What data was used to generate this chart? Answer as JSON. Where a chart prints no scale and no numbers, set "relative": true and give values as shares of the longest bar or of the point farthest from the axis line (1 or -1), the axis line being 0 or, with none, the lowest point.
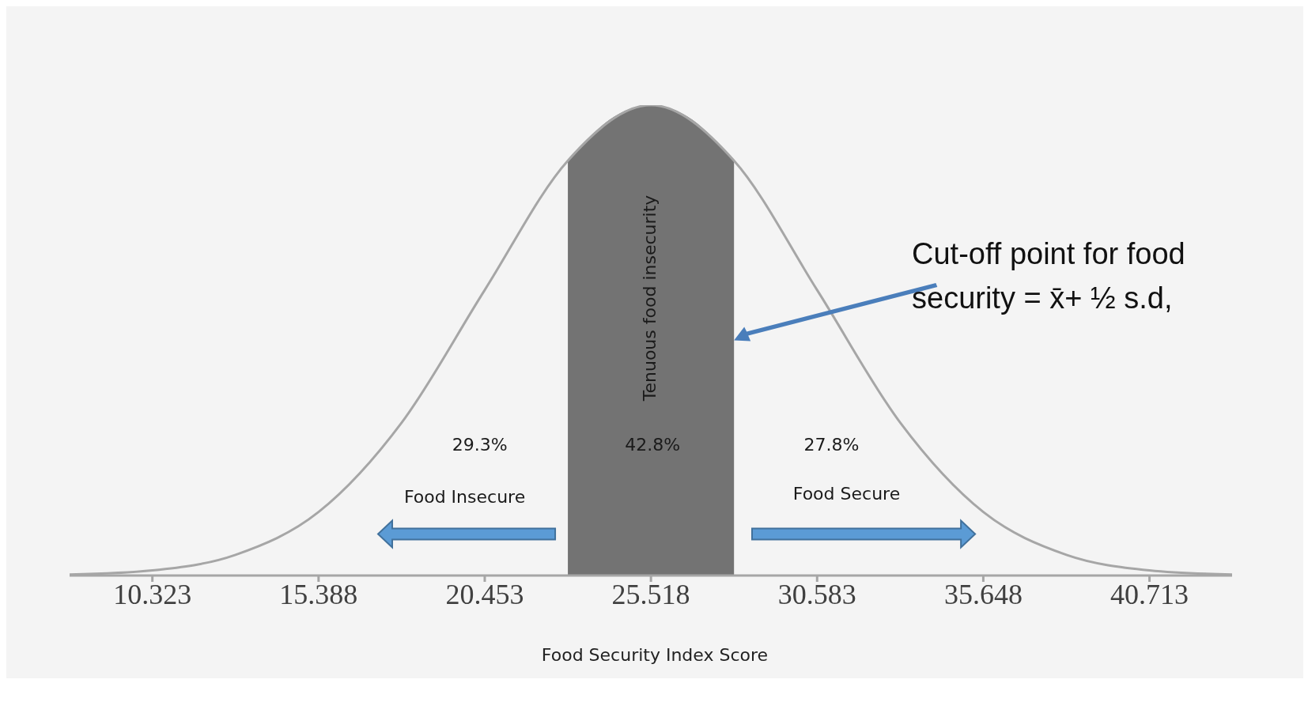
{
  "chart_data": {
    "type": "line",
    "relative": true,
    "xlabel": "Food Security Index Score",
    "xlim": [
      7.8,
      43.23
    ],
    "xticks": [
      10.323,
      15.388,
      20.453,
      25.518,
      30.583,
      35.648,
      40.713
    ],
    "marker": "none",
    "series": [
      {
        "type": "area",
        "color": "#737373",
        "x": [
          22.986,
          23.619,
          24.252,
          24.885,
          25.518,
          26.151,
          26.784,
          27.417,
          28.05
        ],
        "values": [
          0.882,
          0.93,
          0.969,
          0.992,
          1,
          0.992,
          0.969,
          0.93,
          0.882
        ]
      },
      {
        "color": "#a6a6a6",
        "x": [
          7.8,
          10.323,
          12.856,
          15.388,
          17.921,
          20.453,
          22.986,
          25.518,
          28.05,
          30.583,
          33.116,
          35.648,
          38.181,
          40.713,
          43.23
        ],
        "values": [
          0.002,
          0.011,
          0.044,
          0.135,
          0.325,
          0.607,
          0.882,
          1,
          0.882,
          0.607,
          0.325,
          0.135,
          0.044,
          0.011,
          0.002
        ]
      }
    ],
    "annotations": [
      "Tenuous food insecurity",
      "29.3%",
      "42.8%",
      "27.8%",
      "Food Insecure",
      "Food Secure",
      "Cut-off point for food security = x̄+ ½ s.d,"
    ]
  }
}
